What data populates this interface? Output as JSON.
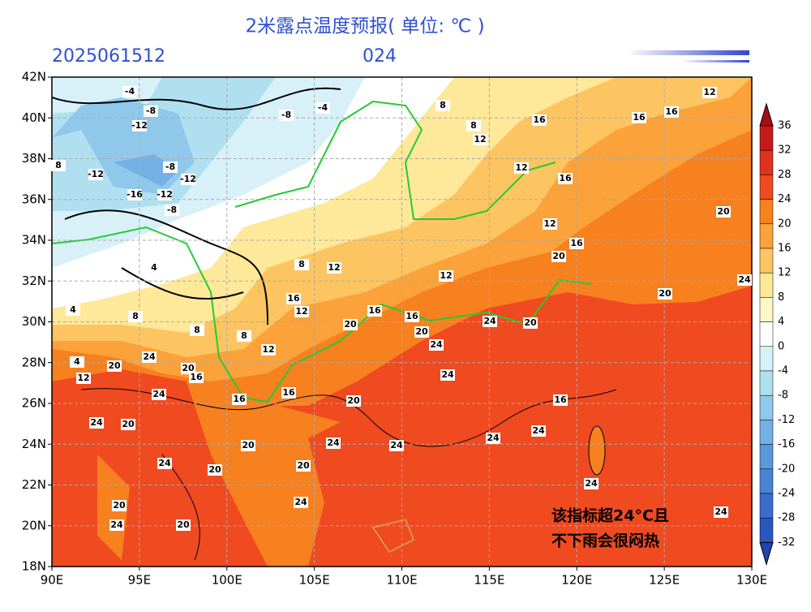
{
  "title": "2米露点温度预报( 单位: ℃ )",
  "init_time": "2025061512",
  "lead_hour": "024",
  "annotation": [
    "该指标超24°C且",
    "不下雨会很闷热"
  ],
  "xlim": [
    90,
    130
  ],
  "ylim": [
    18,
    42
  ],
  "xticks": [
    {
      "value": 90,
      "label": "90E"
    },
    {
      "value": 95,
      "label": "95E"
    },
    {
      "value": 100,
      "label": "100E"
    },
    {
      "value": 105,
      "label": "105E"
    },
    {
      "value": 110,
      "label": "110E"
    },
    {
      "value": 115,
      "label": "115E"
    },
    {
      "value": 120,
      "label": "120E"
    },
    {
      "value": 125,
      "label": "125E"
    },
    {
      "value": 130,
      "label": "130E"
    }
  ],
  "yticks": [
    {
      "value": 18,
      "label": "18N"
    },
    {
      "value": 20,
      "label": "20N"
    },
    {
      "value": 22,
      "label": "22N"
    },
    {
      "value": 24,
      "label": "24N"
    },
    {
      "value": 26,
      "label": "26N"
    },
    {
      "value": 28,
      "label": "28N"
    },
    {
      "value": 30,
      "label": "30N"
    },
    {
      "value": 32,
      "label": "32N"
    },
    {
      "value": 34,
      "label": "34N"
    },
    {
      "value": 36,
      "label": "36N"
    },
    {
      "value": 38,
      "label": "38N"
    },
    {
      "value": 40,
      "label": "40N"
    },
    {
      "value": 42,
      "label": "42N"
    }
  ],
  "colorbar": {
    "ticks": [
      36,
      32,
      28,
      24,
      20,
      16,
      12,
      8,
      4,
      0,
      -4,
      -8,
      -12,
      -16,
      -20,
      -24,
      -28,
      -32
    ],
    "colors": [
      "#a50f15",
      "#c41a1c",
      "#e0301e",
      "#f04a20",
      "#f7801f",
      "#fba23a",
      "#fdc462",
      "#fee89a",
      "#fff6c8",
      "#ffffff",
      "#d8f0f8",
      "#b0e0f0",
      "#90c8ec",
      "#74b0e4",
      "#5a98dc",
      "#4a82d4",
      "#3a6ccc",
      "#2a56c0",
      "#1e44b0"
    ]
  },
  "contour_labels": [
    -4,
    -8,
    -12,
    -8,
    -4,
    8,
    8,
    16,
    16,
    16,
    12,
    8,
    -12,
    -8,
    -12,
    -16,
    -12,
    -8,
    12,
    12,
    16,
    20,
    12,
    16,
    20,
    12,
    12,
    8,
    16,
    12,
    20,
    24,
    24,
    20,
    20,
    16,
    16,
    20,
    24,
    12,
    8,
    24,
    24,
    20,
    12,
    20,
    16,
    16,
    16,
    24,
    20,
    16,
    24,
    20,
    24,
    20,
    24,
    24,
    24,
    24,
    20,
    20,
    24,
    24,
    20,
    20,
    24,
    24,
    8,
    4,
    4,
    8,
    4
  ]
}
